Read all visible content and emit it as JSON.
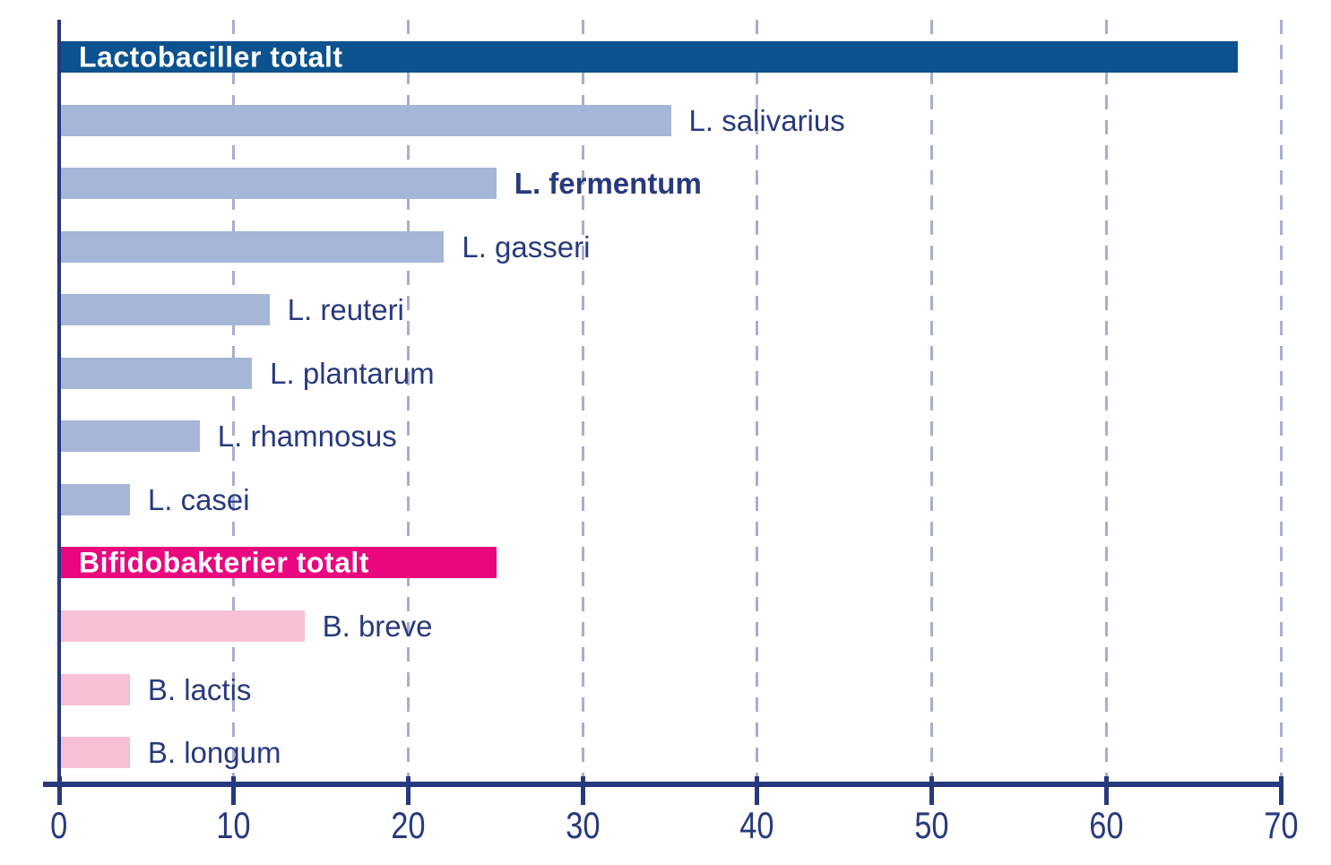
{
  "chart_data": {
    "type": "bar",
    "orientation": "horizontal",
    "title": "",
    "xlabel": "",
    "ylabel": "",
    "xlim": [
      0,
      70
    ],
    "x_ticks": [
      0,
      10,
      20,
      30,
      40,
      50,
      60,
      70
    ],
    "grid": "dashed-vertical",
    "legend": "none",
    "items": [
      {
        "label": "Lactobaciller totalt",
        "value": 67.5,
        "group": "lacto_total",
        "label_position": "inside",
        "bold": true
      },
      {
        "label": "L. salivarius",
        "value": 35,
        "group": "lacto",
        "label_position": "outside",
        "bold": false
      },
      {
        "label": "L. fermentum",
        "value": 25,
        "group": "lacto",
        "label_position": "outside",
        "bold": true
      },
      {
        "label": "L. gasseri",
        "value": 22,
        "group": "lacto",
        "label_position": "outside",
        "bold": false
      },
      {
        "label": "L. reuteri",
        "value": 12,
        "group": "lacto",
        "label_position": "outside",
        "bold": false
      },
      {
        "label": "L. plantarum",
        "value": 11,
        "group": "lacto",
        "label_position": "outside",
        "bold": false
      },
      {
        "label": "L. rhamnosus",
        "value": 8,
        "group": "lacto",
        "label_position": "outside",
        "bold": false
      },
      {
        "label": "L. casei",
        "value": 4,
        "group": "lacto",
        "label_position": "outside",
        "bold": false
      },
      {
        "label": "Bifidobakterier totalt",
        "value": 25,
        "group": "bifido_total",
        "label_position": "inside",
        "bold": true
      },
      {
        "label": "B. breve",
        "value": 14,
        "group": "bifido",
        "label_position": "outside",
        "bold": false
      },
      {
        "label": "B. lactis",
        "value": 4,
        "group": "bifido",
        "label_position": "outside",
        "bold": false
      },
      {
        "label": "B. longum",
        "value": 4,
        "group": "bifido",
        "label_position": "outside",
        "bold": false
      }
    ],
    "colors": {
      "lacto_total": "#0B528F",
      "lacto": "#A5B6D7",
      "bifido_total": "#E9067F",
      "bifido": "#F8C0D7",
      "text": "#283A7D",
      "axis": "#27397E",
      "gridline": "#A9AECE",
      "inside_label": "#FFFFFF",
      "background": "#FFFFFF"
    }
  }
}
